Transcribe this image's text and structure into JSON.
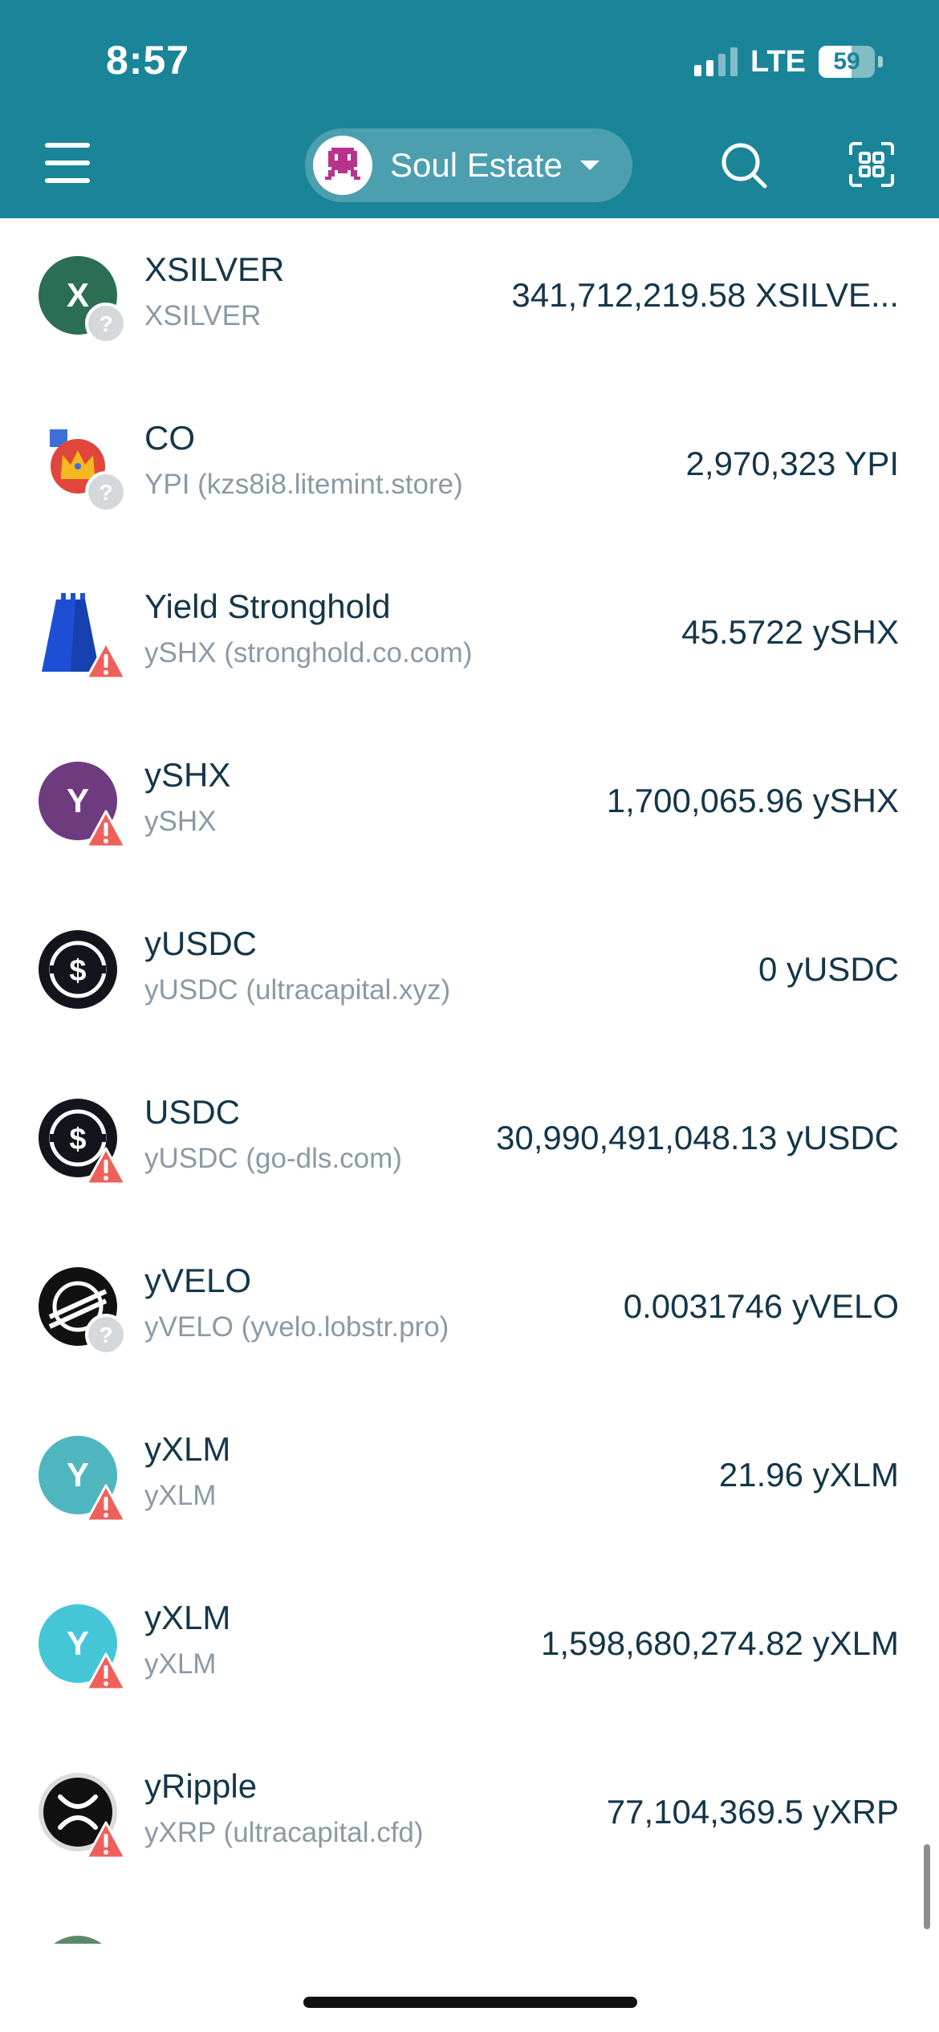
{
  "status_bar": {
    "time": "8:57",
    "network": "LTE",
    "battery": "59"
  },
  "header": {
    "account_name": "Soul Estate"
  },
  "tokens": [
    {
      "name": "XSILVER",
      "issuer": "XSILVER",
      "balance": "341,712,219.58 XSILVE...",
      "icon_letter": "X",
      "icon_color": "#2c6e54",
      "badge": "question"
    },
    {
      "name": "CO",
      "issuer": "YPI (kzs8i8.litemint.store)",
      "balance": "2,970,323 YPI",
      "icon_letter": "",
      "icon_color": "#e0463a",
      "badge": "question"
    },
    {
      "name": "Yield Stronghold",
      "issuer": "ySHX (stronghold.co.com)",
      "balance": "45.5722 ySHX",
      "icon_letter": "",
      "icon_color": "#1d4fd6",
      "badge": "warning"
    },
    {
      "name": "ySHX",
      "issuer": "ySHX",
      "balance": "1,700,065.96 ySHX",
      "icon_letter": "Y",
      "icon_color": "#6e3c7e",
      "badge": "warning"
    },
    {
      "name": "yUSDC",
      "issuer": "yUSDC (ultracapital.xyz)",
      "balance": "0 yUSDC",
      "icon_letter": "",
      "icon_color": "#14141c",
      "badge": "none"
    },
    {
      "name": "USDC",
      "issuer": "yUSDC (go-dls.com)",
      "balance": "30,990,491,048.13 yUSDC",
      "icon_letter": "",
      "icon_color": "#14141c",
      "badge": "warning"
    },
    {
      "name": "yVELO",
      "issuer": "yVELO (yvelo.lobstr.pro)",
      "balance": "0.0031746 yVELO",
      "icon_letter": "",
      "icon_color": "#111111",
      "badge": "question"
    },
    {
      "name": "yXLM",
      "issuer": "yXLM",
      "balance": "21.96 yXLM",
      "icon_letter": "Y",
      "icon_color": "#4fb6c0",
      "badge": "warning"
    },
    {
      "name": "yXLM",
      "issuer": "yXLM",
      "balance": "1,598,680,274.82 yXLM",
      "icon_letter": "Y",
      "icon_color": "#44c6d6",
      "badge": "warning"
    },
    {
      "name": "yRipple",
      "issuer": "yXRP (ultracapital.cfd)",
      "balance": "77,104,369.5 yXRP",
      "icon_letter": "",
      "icon_color": "#111111",
      "badge": "warning"
    }
  ]
}
